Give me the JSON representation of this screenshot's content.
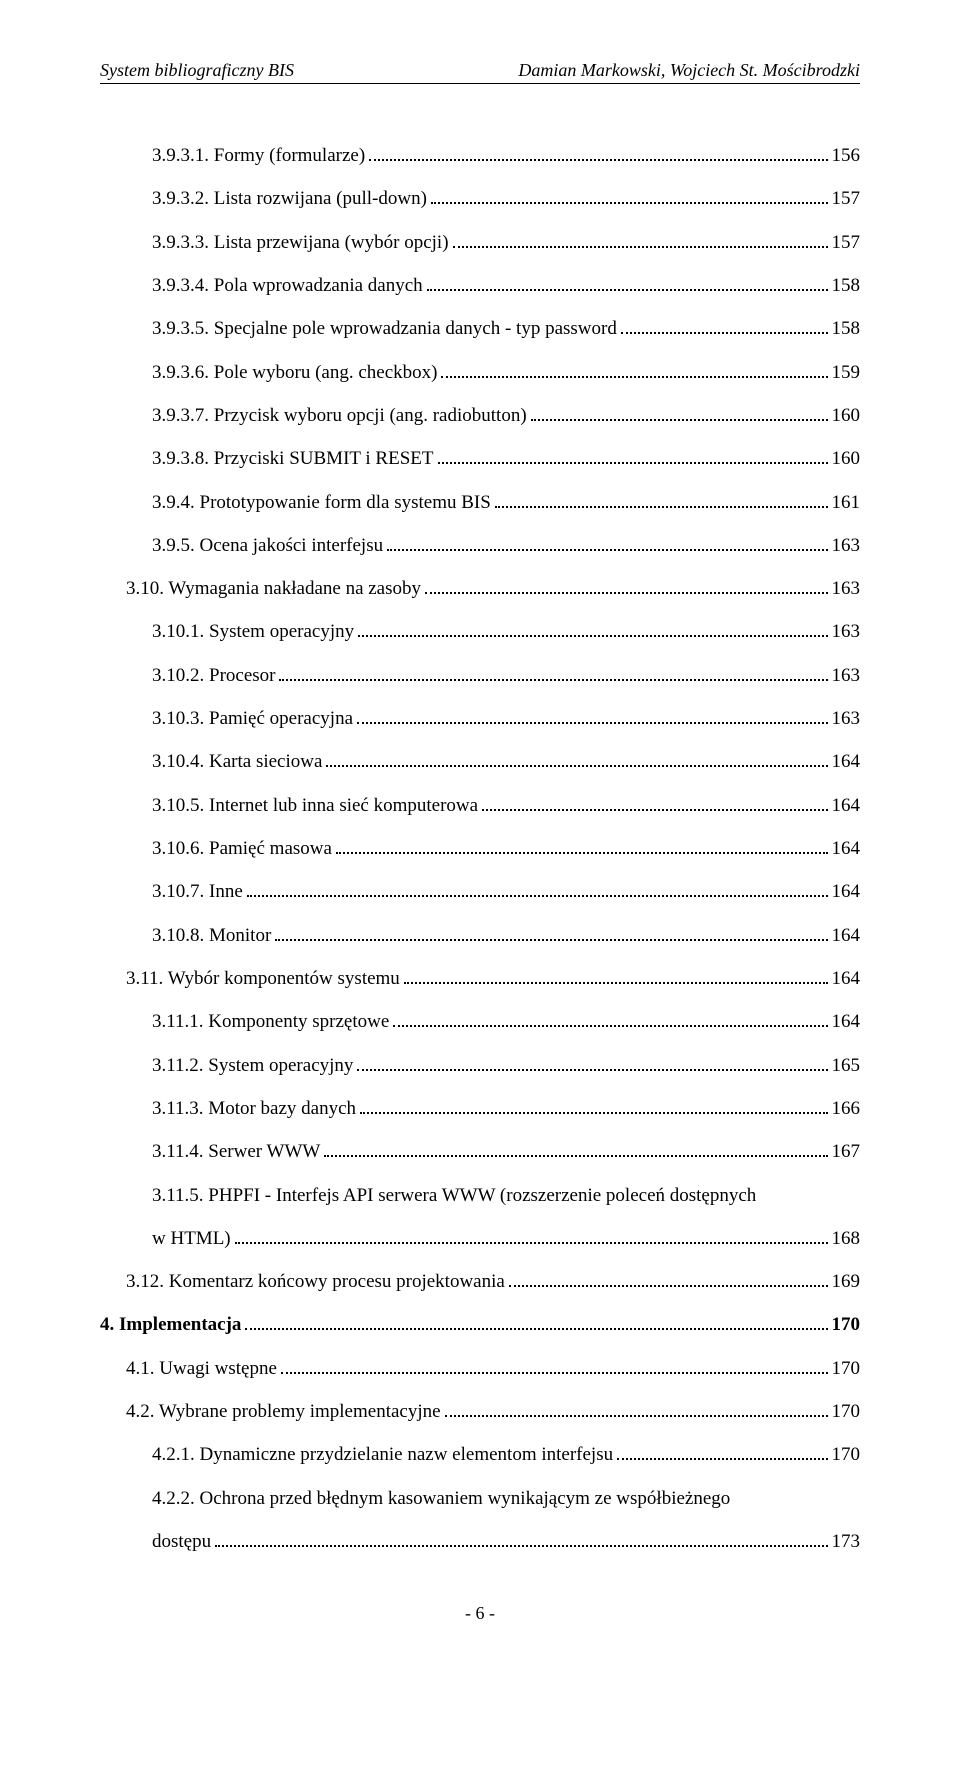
{
  "header": {
    "left": "System bibliograficzny BIS",
    "right": "Damian Markowski, Wojciech St. Mościbrodzki"
  },
  "toc": [
    {
      "indent": 2,
      "label": "3.9.3.1. Formy (formularze)",
      "page": "156"
    },
    {
      "indent": 2,
      "label": "3.9.3.2. Lista rozwijana (pull-down)",
      "page": "157"
    },
    {
      "indent": 2,
      "label": "3.9.3.3. Lista przewijana (wybór opcji)",
      "page": "157"
    },
    {
      "indent": 2,
      "label": "3.9.3.4. Pola wprowadzania danych",
      "page": "158"
    },
    {
      "indent": 2,
      "label": "3.9.3.5. Specjalne pole wprowadzania danych - typ password",
      "page": "158"
    },
    {
      "indent": 2,
      "label": "3.9.3.6. Pole wyboru (ang. checkbox)",
      "page": "159"
    },
    {
      "indent": 2,
      "label": "3.9.3.7. Przycisk wyboru opcji (ang. radiobutton)",
      "page": "160"
    },
    {
      "indent": 2,
      "label": "3.9.3.8. Przyciski SUBMIT i RESET",
      "page": "160"
    },
    {
      "indent": 2,
      "label": "3.9.4. Prototypowanie form dla systemu BIS",
      "page": "161"
    },
    {
      "indent": 2,
      "label": "3.9.5. Ocena jakości interfejsu",
      "page": "163"
    },
    {
      "indent": 1,
      "label": "3.10. Wymagania nakładane na zasoby",
      "page": "163"
    },
    {
      "indent": 2,
      "label": "3.10.1. System operacyjny",
      "page": "163"
    },
    {
      "indent": 2,
      "label": "3.10.2. Procesor",
      "page": "163"
    },
    {
      "indent": 2,
      "label": "3.10.3. Pamięć operacyjna",
      "page": "163"
    },
    {
      "indent": 2,
      "label": "3.10.4. Karta sieciowa",
      "page": "164"
    },
    {
      "indent": 2,
      "label": "3.10.5. Internet lub inna sieć komputerowa",
      "page": "164"
    },
    {
      "indent": 2,
      "label": "3.10.6. Pamięć masowa",
      "page": "164"
    },
    {
      "indent": 2,
      "label": "3.10.7. Inne",
      "page": "164"
    },
    {
      "indent": 2,
      "label": "3.10.8. Monitor",
      "page": "164"
    },
    {
      "indent": 1,
      "label": "3.11. Wybór komponentów systemu",
      "page": "164"
    },
    {
      "indent": 2,
      "label": "3.11.1. Komponenty sprzętowe",
      "page": "164"
    },
    {
      "indent": 2,
      "label": "3.11.2. System operacyjny",
      "page": "165"
    },
    {
      "indent": 2,
      "label": "3.11.3. Motor bazy danych",
      "page": "166"
    },
    {
      "indent": 2,
      "label": "3.11.4. Serwer WWW",
      "page": "167"
    },
    {
      "indent": 2,
      "label": "3.11.5. PHPFI - Interfejs API serwera WWW (rozszerzenie poleceń dostępnych",
      "page": "",
      "nopage": true
    },
    {
      "indent": 2,
      "label": "w HTML)",
      "page": "168"
    },
    {
      "indent": 1,
      "label": "3.12. Komentarz końcowy procesu projektowania",
      "page": "169"
    },
    {
      "indent": 0,
      "label": "4. Implementacja",
      "page": "170",
      "bold": true
    },
    {
      "indent": 1,
      "label": "4.1. Uwagi wstępne",
      "page": "170"
    },
    {
      "indent": 1,
      "label": "4.2. Wybrane problemy implementacyjne",
      "page": "170"
    },
    {
      "indent": 2,
      "label": "4.2.1. Dynamiczne przydzielanie nazw elementom interfejsu",
      "page": "170"
    },
    {
      "indent": 2,
      "label": "4.2.2. Ochrona przed błędnym kasowaniem wynikającym ze współbieżnego",
      "page": "",
      "nopage": true
    },
    {
      "indent": 2,
      "label": "dostępu",
      "page": "173"
    }
  ],
  "footer": "- 6 -"
}
